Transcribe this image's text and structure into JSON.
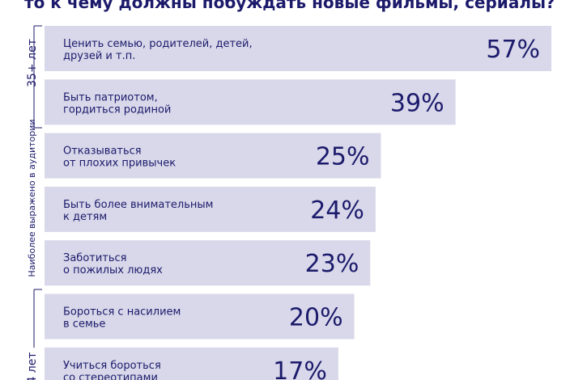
{
  "title": "то к чему должны побуждать новые фильмы, сериалы?",
  "side_labels": {
    "top_group": "35+ лет",
    "middle": "Наиболее выражено в аудитории",
    "bottom_group": "4 лет"
  },
  "chart_data": {
    "type": "hbar",
    "color": "#d8d8ea",
    "text_color": "#1c1a6b",
    "categories": [
      [
        "Ценить семью, родителей, детей,",
        "друзей и т.п."
      ],
      [
        "Быть патриотом,",
        "гордиться родиной"
      ],
      [
        "Отказываться",
        "от плохих привычек"
      ],
      [
        "Быть более внимательным",
        "к детям"
      ],
      [
        "Заботиться",
        "о пожилых людях"
      ],
      [
        "Бороться с насилием",
        "в семье"
      ],
      [
        "Учиться бороться",
        "со стереотипами"
      ]
    ],
    "values": [
      57,
      39,
      25,
      24,
      23,
      20,
      17
    ],
    "value_labels": [
      "57%",
      "39%",
      "25%",
      "24%",
      "23%",
      "20%",
      "17%"
    ]
  }
}
